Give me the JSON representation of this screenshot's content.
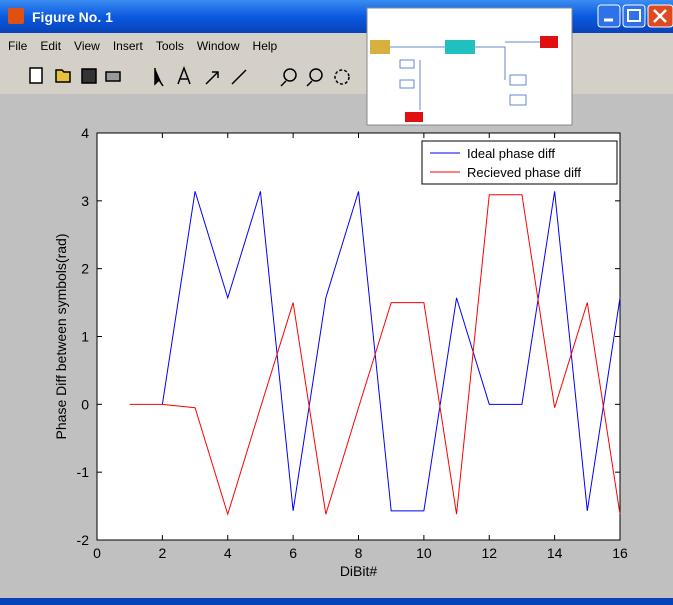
{
  "window": {
    "title": "Figure No. 1",
    "menu": [
      "File",
      "Edit",
      "View",
      "Insert",
      "Tools",
      "Window",
      "Help"
    ]
  },
  "chart_data": {
    "type": "line",
    "x": [
      1,
      2,
      3,
      4,
      5,
      6,
      7,
      8,
      9,
      10,
      11,
      12,
      13,
      14,
      15,
      16
    ],
    "series": [
      {
        "name": "Ideal phase diff",
        "color": "#0000ff",
        "values": [
          null,
          0,
          3.14,
          1.57,
          3.14,
          -1.57,
          1.57,
          3.14,
          -1.57,
          -1.57,
          1.57,
          0,
          0,
          3.14,
          -1.57,
          1.57
        ]
      },
      {
        "name": "Recieved phase diff",
        "color": "#ff0000",
        "values": [
          0,
          0,
          -0.05,
          -1.62,
          -0.05,
          1.5,
          -1.62,
          -0.05,
          1.5,
          1.5,
          -1.62,
          3.09,
          3.09,
          -0.05,
          1.5,
          -1.62
        ]
      }
    ],
    "xlabel": "DiBit#",
    "ylabel": "Phase Diff between symbols(rad)",
    "xlim": [
      0,
      16
    ],
    "ylim": [
      -2,
      4
    ],
    "xticks": [
      0,
      2,
      4,
      6,
      8,
      10,
      12,
      14,
      16
    ],
    "yticks": [
      -2,
      -1,
      0,
      1,
      2,
      3,
      4
    ],
    "legend": "upper right"
  }
}
